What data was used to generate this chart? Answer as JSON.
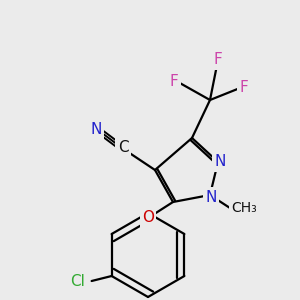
{
  "background_color": "#ebebeb",
  "bond_color": "#000000",
  "bond_width": 1.6,
  "figsize": [
    3.0,
    3.0
  ],
  "dpi": 100,
  "colors": {
    "N": "#2222cc",
    "O": "#cc0000",
    "C": "#111111",
    "Cl": "#33aa33",
    "F": "#cc44aa",
    "bond": "#000000"
  }
}
